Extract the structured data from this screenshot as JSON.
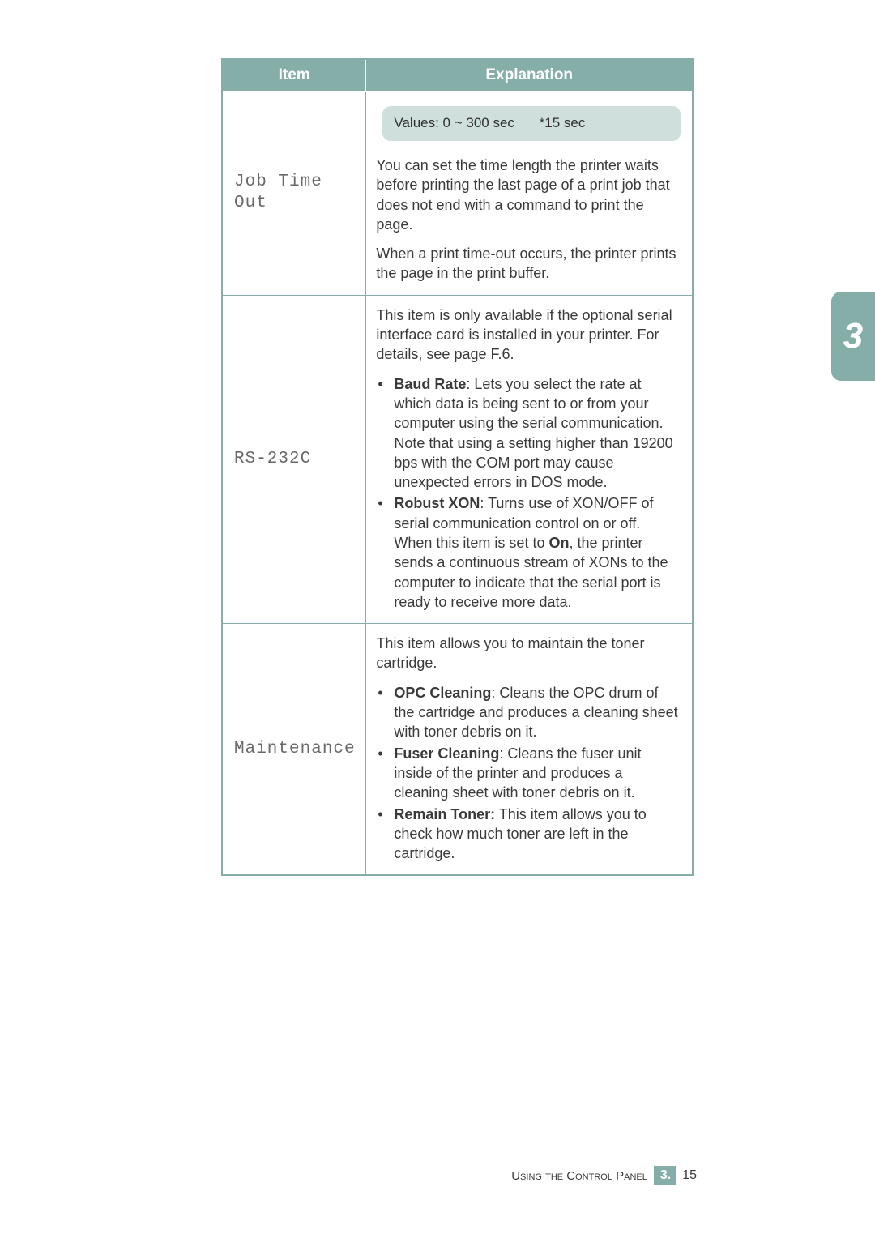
{
  "table": {
    "headers": {
      "item": "Item",
      "explanation": "Explanation"
    },
    "rows": [
      {
        "item": "Job Time\nOut",
        "values_line": {
          "range": "Values: 0 ~ 300 sec",
          "default": "*15 sec"
        },
        "paras": [
          "You can set the time length the printer waits before printing the last page of a print job that does not end with a command to print the page.",
          "When a print time-out occurs, the printer prints the page in the print buffer."
        ]
      },
      {
        "item": "RS-232C",
        "intro": "This item is only available if the optional serial interface card is installed in your printer. For details, see page F.6.",
        "bullets": [
          {
            "title": "Baud Rate",
            "text": ": Lets you select the rate at which data is being sent to or from your computer using the serial communication. Note that using a setting higher than 19200 bps with the COM port may cause unexpected errors in DOS mode."
          },
          {
            "title": "Robust XON",
            "text": ": Turns use of XON/OFF of serial communication control on or off. When this item is set to ",
            "bold2": "On",
            "text2": ", the printer sends a continuous stream of XONs to the computer to indicate that the serial port is ready to receive more data."
          }
        ]
      },
      {
        "item": "Maintenance",
        "intro": "This item allows you to maintain the toner cartridge.",
        "bullets": [
          {
            "title": "OPC Cleaning",
            "text": ": Cleans the OPC drum of the cartridge and produces a cleaning sheet with toner debris on it."
          },
          {
            "title": "Fuser Cleaning",
            "text": ": Cleans the fuser unit inside of the printer and produces a cleaning sheet with toner debris on it."
          },
          {
            "title": "Remain Toner:",
            "text": " This item allows you to check how much toner are left in the cartridge."
          }
        ]
      }
    ]
  },
  "sideTab": "3",
  "footer": {
    "text": "Using the Control Panel",
    "box": "3.",
    "num": "15"
  },
  "colors": {
    "accent": "#86aea9",
    "pill": "#cfe0dc",
    "text": "#3a3a3a",
    "itemText": "#686969"
  }
}
